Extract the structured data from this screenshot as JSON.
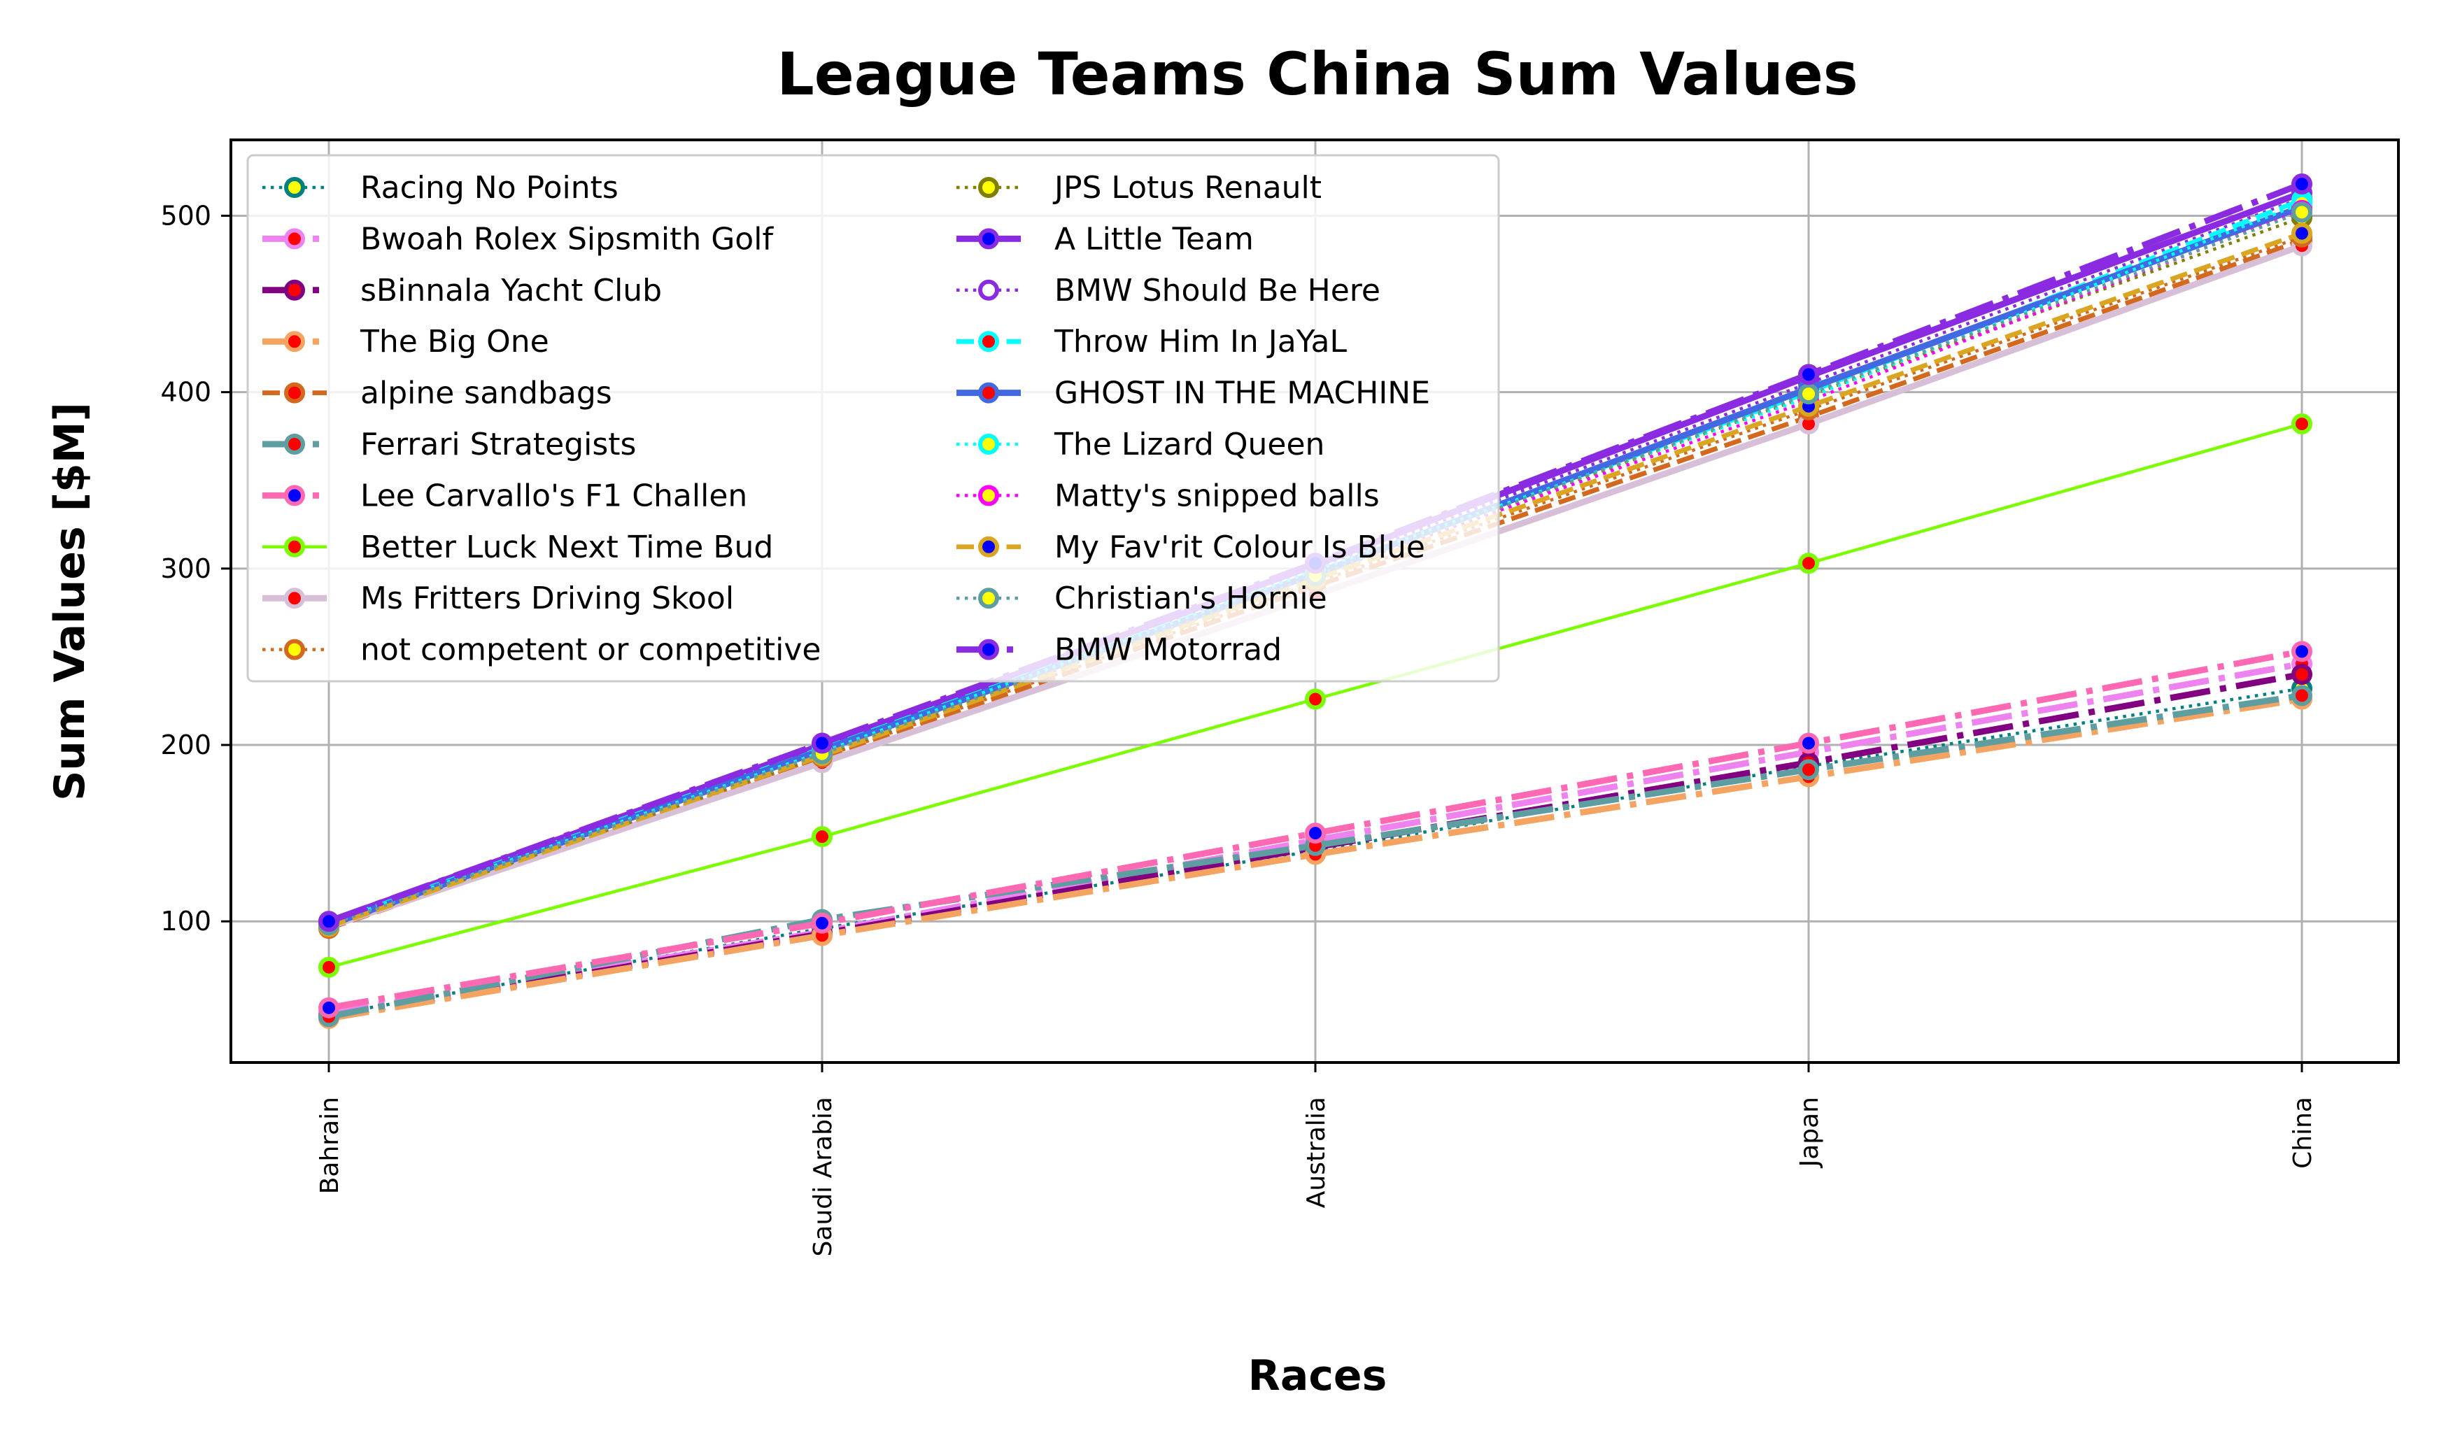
{
  "chart_data": {
    "type": "line",
    "title": "League Teams China Sum Values",
    "xlabel": "Races",
    "ylabel": "Sum Values [$M]",
    "categories": [
      "Bahrain",
      "Saudi Arabia",
      "Australia",
      "Japan",
      "China"
    ],
    "ylim": [
      20,
      543
    ],
    "yticks": [
      100,
      200,
      300,
      400,
      500
    ],
    "grid": true,
    "legend_position": "upper-left",
    "legend_columns": 2,
    "series": [
      {
        "name": "Racing No Points",
        "values": [
          47,
          96,
          140,
          188,
          232
        ],
        "color": "#008080",
        "dash": "dot",
        "width": 2,
        "marker_face": "#ffff00",
        "marker_edge": "#008080"
      },
      {
        "name": "Bwoah Rolex Sipsmith Golf",
        "values": [
          48,
          94,
          146,
          196,
          246
        ],
        "color": "#ee82ee",
        "dash": "dashdot",
        "width": 4,
        "marker_face": "#ff0000",
        "marker_edge": "#ee82ee"
      },
      {
        "name": "sBinnala Yacht Club",
        "values": [
          46,
          93,
          142,
          190,
          240
        ],
        "color": "#800080",
        "dash": "dashdot",
        "width": 4,
        "marker_face": "#ff0000",
        "marker_edge": "#800080"
      },
      {
        "name": "The Big One",
        "values": [
          45,
          92,
          138,
          182,
          226
        ],
        "color": "#f4a460",
        "dash": "dashdot",
        "width": 4,
        "marker_face": "#ff0000",
        "marker_edge": "#f4a460"
      },
      {
        "name": "alpine sandbags",
        "values": [
          96,
          192,
          290,
          386,
          486
        ],
        "color": "#d2691e",
        "dash": "dashed",
        "width": 3,
        "marker_face": "#ff0000",
        "marker_edge": "#d2691e"
      },
      {
        "name": "Ferrari Strategists",
        "values": [
          46,
          101,
          143,
          186,
          228
        ],
        "color": "#5f9ea0",
        "dash": "dashdot",
        "width": 4,
        "marker_face": "#ff0000",
        "marker_edge": "#5f9ea0"
      },
      {
        "name": "Lee Carvallo's F1 Challen",
        "values": [
          51,
          99,
          150,
          201,
          253
        ],
        "color": "#ff69b4",
        "dash": "dashdot",
        "width": 4,
        "marker_face": "#0000ff",
        "marker_edge": "#ff69b4"
      },
      {
        "name": "Better Luck Next Time Bud",
        "values": [
          74,
          148,
          226,
          303,
          382
        ],
        "color": "#7cfc00",
        "dash": "solid",
        "width": 2,
        "marker_face": "#ff0000",
        "marker_edge": "#7cfc00"
      },
      {
        "name": "Ms Fritters Driving Skool",
        "values": [
          97,
          190,
          285,
          382,
          483
        ],
        "color": "#d8bfd8",
        "dash": "solid",
        "width": 4,
        "marker_face": "#ff0000",
        "marker_edge": "#d8bfd8"
      },
      {
        "name": "not competent or competitive",
        "values": [
          98,
          193,
          292,
          390,
          488
        ],
        "color": "#d2691e",
        "dash": "dot",
        "width": 2,
        "marker_face": "#ffff00",
        "marker_edge": "#d2691e"
      },
      {
        "name": "JPS Lotus Renault",
        "values": [
          97,
          194,
          296,
          398,
          499
        ],
        "color": "#808000",
        "dash": "dot",
        "width": 2,
        "marker_face": "#ffff00",
        "marker_edge": "#808000"
      },
      {
        "name": "A Little Team",
        "values": [
          100,
          200,
          302,
          409,
          513
        ],
        "color": "#8a2be2",
        "dash": "solid",
        "width": 4,
        "marker_face": "#0000ff",
        "marker_edge": "#8a2be2"
      },
      {
        "name": "BMW Should Be Here",
        "values": [
          99,
          198,
          300,
          405,
          510
        ],
        "color": "#8a2be2",
        "dash": "dot",
        "width": 2,
        "marker_face": "#ffffff",
        "marker_edge": "#8a2be2"
      },
      {
        "name": "Throw Him In JaYaL",
        "values": [
          99,
          198,
          298,
          400,
          509
        ],
        "color": "#00ffff",
        "dash": "dashed",
        "width": 3,
        "marker_face": "#ff0000",
        "marker_edge": "#00ffff"
      },
      {
        "name": "GHOST IN THE MACHINE",
        "values": [
          98,
          197,
          297,
          402,
          505
        ],
        "color": "#4169e1",
        "dash": "solid",
        "width": 4,
        "marker_face": "#ff0000",
        "marker_edge": "#4169e1"
      },
      {
        "name": "The Lizard Queen",
        "values": [
          99,
          196,
          299,
          397,
          507
        ],
        "color": "#00ffff",
        "dash": "dot",
        "width": 2,
        "marker_face": "#ffff00",
        "marker_edge": "#00ffff"
      },
      {
        "name": "Matty's snipped balls",
        "values": [
          98,
          195,
          296,
          395,
          503
        ],
        "color": "#ff00ff",
        "dash": "dot",
        "width": 2,
        "marker_face": "#ffff00",
        "marker_edge": "#ff00ff"
      },
      {
        "name": "My Fav'rit Colour Is Blue",
        "values": [
          97,
          194,
          294,
          392,
          490
        ],
        "color": "#daa520",
        "dash": "dashed",
        "width": 3,
        "marker_face": "#0000ff",
        "marker_edge": "#daa520"
      },
      {
        "name": "Christian's Hornie",
        "values": [
          98,
          195,
          296,
          399,
          502
        ],
        "color": "#5f9ea0",
        "dash": "dot",
        "width": 2,
        "marker_face": "#ffff00",
        "marker_edge": "#5f9ea0"
      },
      {
        "name": "BMW Motorrad",
        "values": [
          100,
          201,
          303,
          410,
          518
        ],
        "color": "#8a2be2",
        "dash": "dashdot",
        "width": 4,
        "marker_face": "#0000ff",
        "marker_edge": "#8a2be2"
      }
    ]
  }
}
